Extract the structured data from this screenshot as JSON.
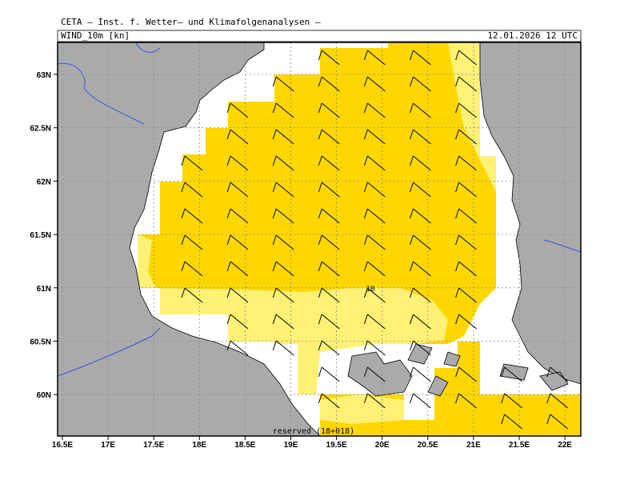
{
  "header": {
    "title": "CETA — Inst. f. Wetter— und Klimafolgenanalysen —",
    "field": "WIND_10m [kn]",
    "time": "12.01.2026 12 UTC"
  },
  "map": {
    "contour_label": "10",
    "footer": "reserved (18+018)",
    "lon_ticks": [
      {
        "value": 16.5,
        "label": "16.5E"
      },
      {
        "value": 17,
        "label": "17E"
      },
      {
        "value": 17.5,
        "label": "17.5E"
      },
      {
        "value": 18,
        "label": "18E"
      },
      {
        "value": 18.5,
        "label": "18.5E"
      },
      {
        "value": 19,
        "label": "19E"
      },
      {
        "value": 19.5,
        "label": "19.5E"
      },
      {
        "value": 20,
        "label": "20E"
      },
      {
        "value": 20.5,
        "label": "20.5E"
      },
      {
        "value": 21,
        "label": "21E"
      },
      {
        "value": 21.5,
        "label": "21.5E"
      },
      {
        "value": 22,
        "label": "22E"
      }
    ],
    "lat_ticks": [
      {
        "value": 63,
        "label": "63N"
      },
      {
        "value": 62.5,
        "label": "62.5N"
      },
      {
        "value": 62,
        "label": "62N"
      },
      {
        "value": 61.5,
        "label": "61.5N"
      },
      {
        "value": 61,
        "label": "61N"
      },
      {
        "value": 60.5,
        "label": "60.5N"
      },
      {
        "value": 60,
        "label": "60N"
      }
    ]
  }
}
